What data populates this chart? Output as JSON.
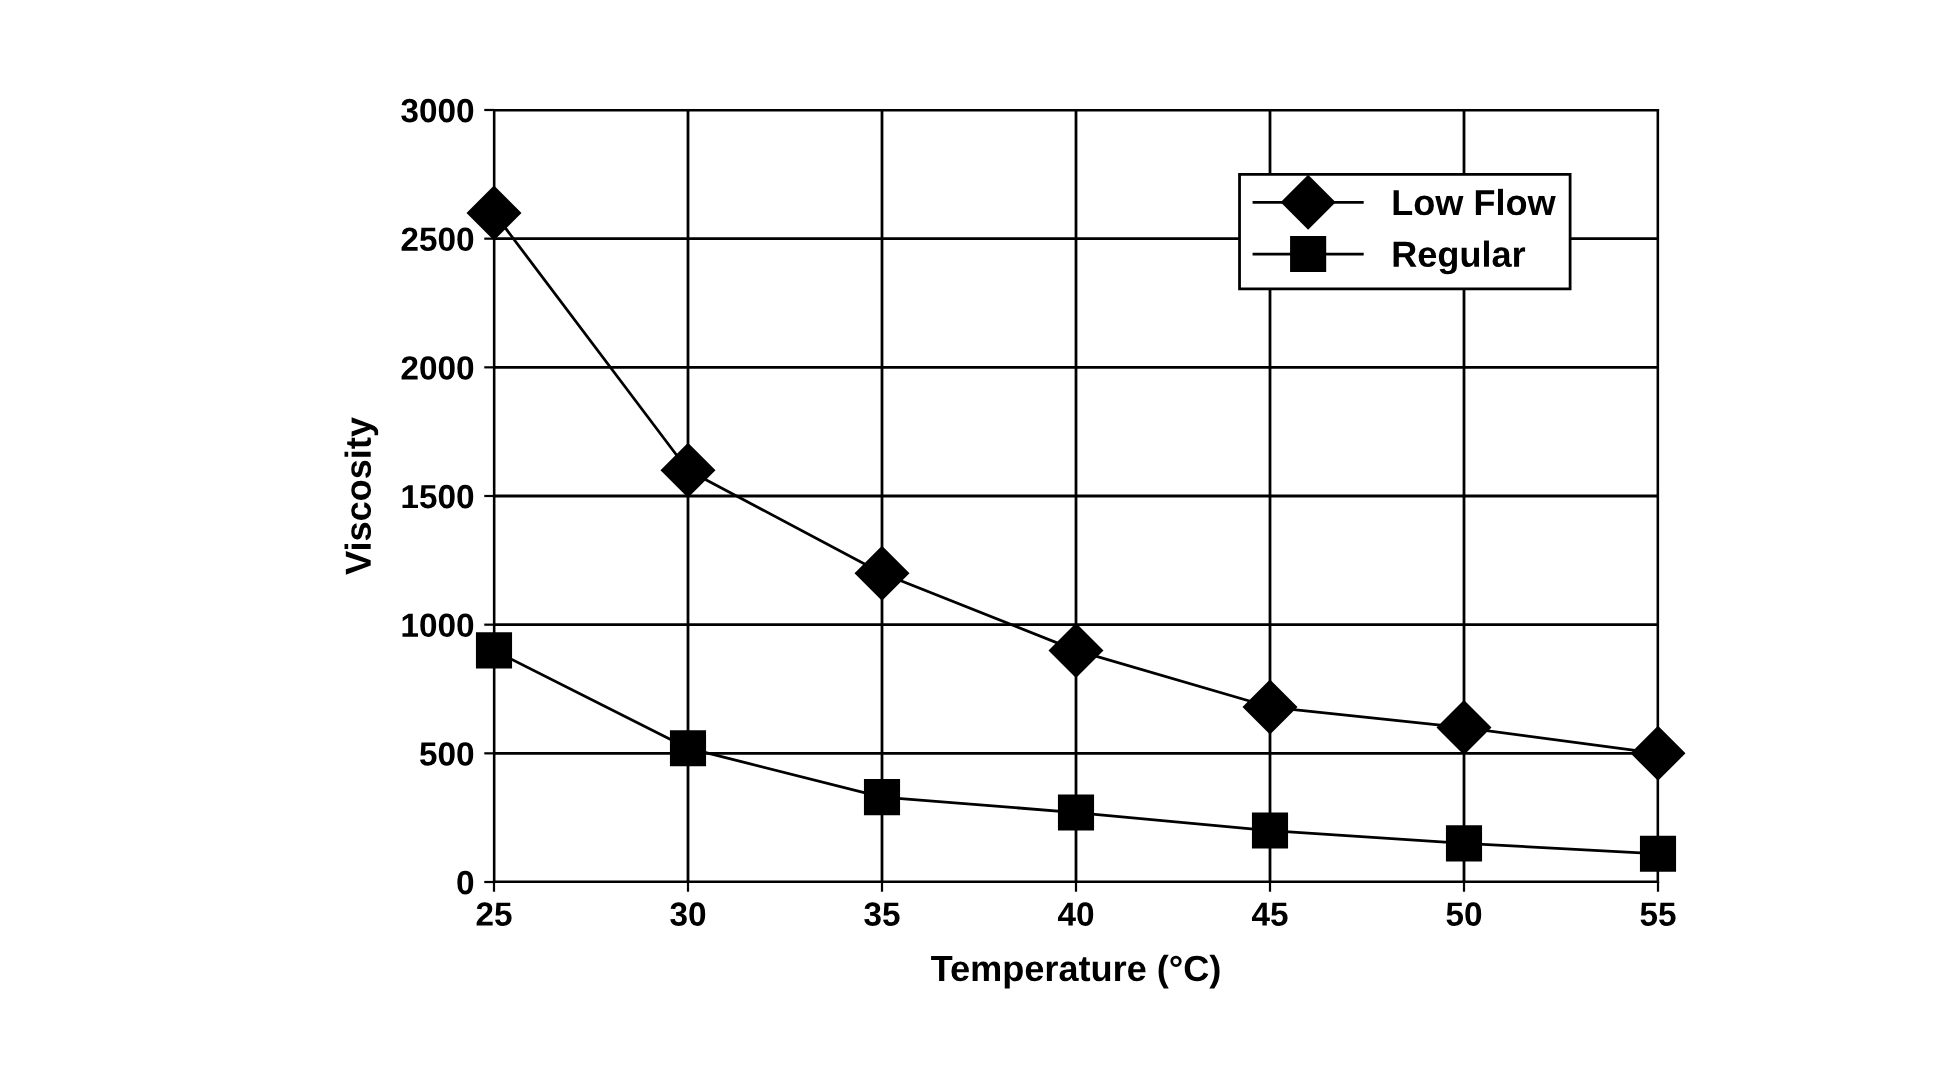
{
  "chart_data": {
    "type": "line",
    "xlabel": "Temperature (°C)",
    "ylabel": "Viscosity",
    "x": [
      25,
      30,
      35,
      40,
      45,
      50,
      55
    ],
    "series": [
      {
        "name": "Low Flow",
        "color": "#000000",
        "marker": "diamond",
        "values": [
          2600,
          1600,
          1200,
          900,
          680,
          600,
          500
        ]
      },
      {
        "name": "Regular",
        "color": "#000000",
        "marker": "square",
        "values": [
          900,
          520,
          330,
          270,
          200,
          150,
          110
        ]
      }
    ],
    "xlim": [
      25,
      55
    ],
    "xticks": [
      25,
      30,
      35,
      40,
      45,
      50,
      55
    ],
    "ylim": [
      0,
      3000
    ],
    "yticks": [
      0,
      500,
      1000,
      1500,
      2000,
      2500,
      3000
    ],
    "grid": true,
    "legend": "top right",
    "line_style": "solid"
  }
}
